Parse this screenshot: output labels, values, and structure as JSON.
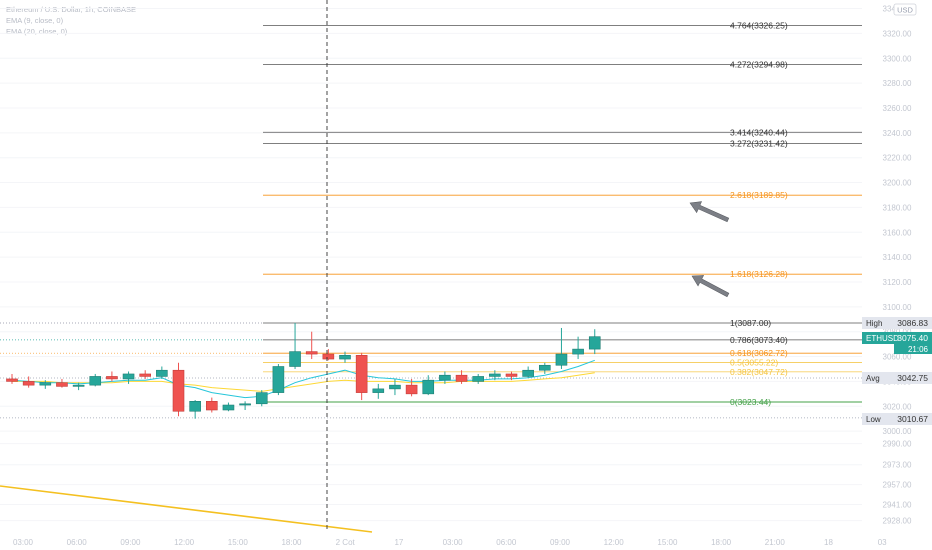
{
  "legend": {
    "symbol_line": "Ethereum / U.S. Dollar, 1h, COINBASE",
    "ema1": "EMA (9, close, 0)",
    "ema2": "EMA (20, close, 0)"
  },
  "currency_badge": "USD",
  "price_axis": {
    "ticks": [
      3340.0,
      3320.0,
      3300.0,
      3280.0,
      3260.0,
      3240.0,
      3220.0,
      3200.0,
      3180.0,
      3160.0,
      3140.0,
      3120.0,
      3100.0,
      3080.0,
      3060.0,
      3040.0,
      3020.0,
      3000.0,
      2990.0,
      2973.0,
      2957.0,
      2941.0,
      2928.0
    ],
    "tick_labels": [
      "3340.00",
      "3320.00",
      "3300.00",
      "3280.00",
      "3260.00",
      "3240.00",
      "3220.00",
      "3200.00",
      "3180.00",
      "3160.00",
      "3140.00",
      "3120.00",
      "3100.00",
      "3080.00",
      "3060.00",
      "3040.00",
      "3020.00",
      "3000.00",
      "2990.00",
      "2973.00",
      "2957.00",
      "2941.00",
      "2928.00"
    ]
  },
  "time_axis": {
    "labels": [
      "03:00",
      "06:00",
      "09:00",
      "12:00",
      "15:00",
      "18:00",
      "2 Cot",
      "17",
      "03:00",
      "06:00",
      "09:00",
      "12:00",
      "15:00",
      "18:00",
      "21:00",
      "18",
      "03"
    ]
  },
  "markers": {
    "high": {
      "label": "High",
      "value": "3086.83"
    },
    "current": {
      "label": "ETHUSD",
      "value": "3075.40",
      "countdown": "21:06"
    },
    "avg": {
      "label": "Avg",
      "value": "3042.75"
    },
    "low": {
      "label": "Low",
      "value": "3010.67"
    }
  },
  "colors": {
    "up": "#26a69a",
    "down": "#ef5350",
    "fib_orange": "#f7931a",
    "fib_gray": "#555555",
    "fib_zero": "#43a047",
    "ema_fast": "#26c6da",
    "ema_slow": "#fdd835",
    "trendline": "#f4c020"
  },
  "chart_data": {
    "type": "candlestick",
    "symbol": "ETHUSD",
    "interval": "1h",
    "candles": [
      [
        3042,
        3046,
        3038,
        3040
      ],
      [
        3040,
        3044,
        3035,
        3037
      ],
      [
        3037,
        3041,
        3034,
        3039
      ],
      [
        3039,
        3042,
        3035,
        3036
      ],
      [
        3036,
        3039,
        3033,
        3037
      ],
      [
        3037,
        3046,
        3036,
        3044
      ],
      [
        3044,
        3048,
        3040,
        3042
      ],
      [
        3042,
        3048,
        3038,
        3046
      ],
      [
        3046,
        3049,
        3042,
        3044
      ],
      [
        3044,
        3052,
        3042,
        3049
      ],
      [
        3049,
        3055,
        3012,
        3016
      ],
      [
        3016,
        3025,
        3010,
        3024
      ],
      [
        3024,
        3027,
        3015,
        3017
      ],
      [
        3017,
        3023,
        3016,
        3021
      ],
      [
        3021,
        3024,
        3017,
        3022
      ],
      [
        3022,
        3033,
        3020,
        3031
      ],
      [
        3031,
        3054,
        3029,
        3052
      ],
      [
        3052,
        3087,
        3050,
        3064
      ],
      [
        3064,
        3080,
        3058,
        3062
      ],
      [
        3062,
        3066,
        3057,
        3058
      ],
      [
        3058,
        3064,
        3055,
        3061
      ],
      [
        3061,
        3063,
        3025,
        3031
      ],
      [
        3031,
        3038,
        3026,
        3034
      ],
      [
        3034,
        3042,
        3029,
        3037
      ],
      [
        3037,
        3042,
        3028,
        3030
      ],
      [
        3030,
        3045,
        3029,
        3041
      ],
      [
        3041,
        3048,
        3038,
        3045
      ],
      [
        3045,
        3049,
        3038,
        3040
      ],
      [
        3040,
        3046,
        3038,
        3044
      ],
      [
        3044,
        3049,
        3041,
        3046
      ],
      [
        3046,
        3048,
        3041,
        3044
      ],
      [
        3044,
        3052,
        3043,
        3049
      ],
      [
        3049,
        3055,
        3046,
        3053
      ],
      [
        3053,
        3083,
        3050,
        3062
      ],
      [
        3062,
        3076,
        3058,
        3066
      ],
      [
        3066,
        3082,
        3062,
        3076
      ]
    ],
    "ema_fast": [
      3041,
      3040,
      3039,
      3039,
      3038,
      3039,
      3040,
      3041,
      3041,
      3043,
      3037,
      3035,
      3031,
      3029,
      3027,
      3028,
      3033,
      3039,
      3043,
      3046,
      3049,
      3045,
      3043,
      3042,
      3040,
      3040,
      3041,
      3041,
      3041,
      3042,
      3042,
      3043,
      3045,
      3048,
      3052,
      3057
    ],
    "ema_slow": [
      3040,
      3040,
      3040,
      3039,
      3039,
      3039,
      3039,
      3040,
      3040,
      3040,
      3038,
      3037,
      3035,
      3034,
      3033,
      3032,
      3034,
      3036,
      3038,
      3040,
      3041,
      3040,
      3040,
      3040,
      3039,
      3039,
      3039,
      3040,
      3040,
      3040,
      3040,
      3041,
      3042,
      3043,
      3045,
      3047
    ],
    "fib_levels": [
      {
        "ratio": "4.764",
        "price": 3326.25,
        "label": "4.764(3326.25)",
        "color": "gray"
      },
      {
        "ratio": "4.272",
        "price": 3294.98,
        "label": "4.272(3294.98)",
        "color": "gray"
      },
      {
        "ratio": "3.414",
        "price": 3240.44,
        "label": "3.414(3240.44)",
        "color": "gray"
      },
      {
        "ratio": "3.272",
        "price": 3231.42,
        "label": "3.272(3231.42)",
        "color": "gray"
      },
      {
        "ratio": "2.618",
        "price": 3189.85,
        "label": "2.618(3189.85)",
        "color": "orange"
      },
      {
        "ratio": "1.618",
        "price": 3126.28,
        "label": "1.618(3126.28)",
        "color": "orange"
      },
      {
        "ratio": "1",
        "price": 3087.0,
        "label": "1(3087.00)",
        "color": "gray"
      },
      {
        "ratio": "0.786",
        "price": 3073.4,
        "label": "0.786(3073.40)",
        "color": "gray"
      },
      {
        "ratio": "0.618",
        "price": 3062.72,
        "label": "0.618(3062.72)",
        "color": "orange"
      },
      {
        "ratio": "0.5",
        "price": 3055.22,
        "label": "0.5(3055.22)",
        "color": "yellow"
      },
      {
        "ratio": "0.382",
        "price": 3047.72,
        "label": "0.382(3047.72)",
        "color": "yellow"
      },
      {
        "ratio": "0",
        "price": 3023.44,
        "label": "0(3023.44)",
        "color": "green"
      }
    ],
    "price_range": [
      2926,
      3350
    ]
  }
}
